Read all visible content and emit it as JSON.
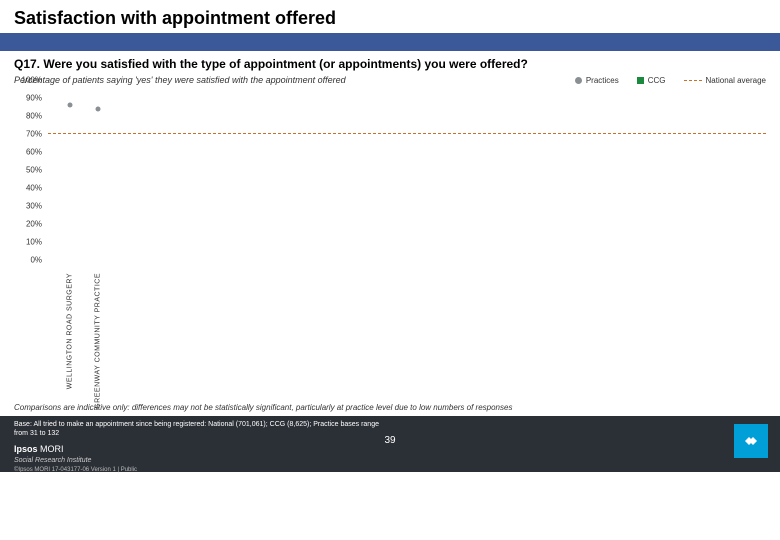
{
  "title": "Satisfaction with appointment offered",
  "question": "Q17. Were you satisfied with the type of appointment (or appointments) you were offered?",
  "subtitle": "Percentage of patients saying 'yes' they were satisfied with the appointment offered",
  "legend": {
    "practices": "Practices",
    "ccg": "CCG",
    "national": "National average"
  },
  "colors": {
    "blue_bar": "#3b5998",
    "practice_marker": "#8a8f94",
    "ccg_marker": "#1b8a3e",
    "national_line": "#c9702a",
    "footer_bg": "#2b2f36"
  },
  "chart": {
    "type": "scatter",
    "ylim": [
      0,
      100
    ],
    "ytick_step": 10,
    "yticks_labels": [
      "0%",
      "10%",
      "20%",
      "30%",
      "40%",
      "50%",
      "60%",
      "70%",
      "80%",
      "90%",
      "100%"
    ],
    "national_value": 75,
    "practice_marker_size": 5,
    "x_categories": [
      "WELLINGTON ROAD SURGERY",
      "GREENWAY COMMUNITY PRACTICE"
    ],
    "practice_values": [
      91,
      89
    ],
    "practice_x_positions_pct": [
      3,
      7
    ]
  },
  "note": "Comparisons are indicative only: differences may not be statistically significant, particularly at practice level due to low numbers of responses",
  "footer": {
    "base": "Base: All tried to make an appointment since being registered: National (701,061); CCG (8,625); Practice bases range from 31 to 132",
    "brand_bold": "Ipsos",
    "brand_light": " MORI",
    "brand_sub": "Social Research Institute",
    "copyright": "©Ipsos MORI    17-043177-06 Version 1 | Public",
    "page": "39"
  }
}
